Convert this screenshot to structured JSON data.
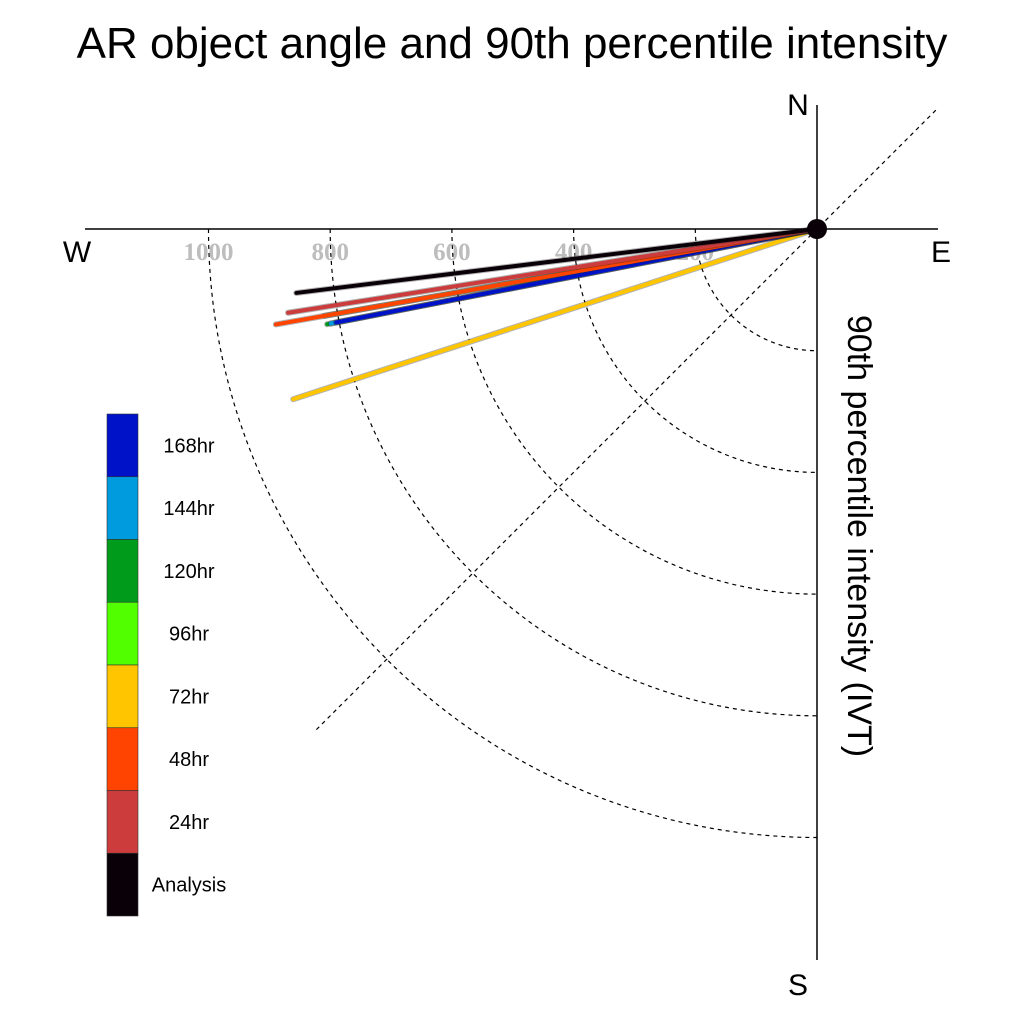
{
  "chart_data": {
    "type": "polar-vector",
    "title": "AR object angle and 90th percentile intensity",
    "ylabel": "90th percentile intensity (IVT)",
    "directions": {
      "north": "N",
      "south": "S",
      "east": "E",
      "west": "W"
    },
    "radial_ticks": [
      "1000",
      "800",
      "600",
      "400",
      "200"
    ],
    "radial_tick_values": [
      1000,
      800,
      600,
      400,
      200
    ],
    "radial_max": 1200,
    "series": [
      {
        "name": "72hr",
        "angle_deg": 198,
        "intensity": 905,
        "color": "#FFC600"
      },
      {
        "name": "96hr",
        "angle_deg": 190,
        "intensity": 822,
        "color": "#52FF00"
      },
      {
        "name": "120hr",
        "angle_deg": 191,
        "intensity": 820,
        "color": "#009B1A"
      },
      {
        "name": "144hr",
        "angle_deg": 191,
        "intensity": 814,
        "color": "#009ADE"
      },
      {
        "name": "168hr",
        "angle_deg": 191,
        "intensity": 805,
        "color": "#0012C8"
      },
      {
        "name": "48hr",
        "angle_deg": 190,
        "intensity": 903,
        "color": "#FF4300"
      },
      {
        "name": "24hr",
        "angle_deg": 189,
        "intensity": 880,
        "color": "#CC3C3C"
      },
      {
        "name": "Analysis",
        "angle_deg": 187,
        "intensity": 862,
        "color": "#0A0008"
      }
    ],
    "legend": {
      "position": "left",
      "entries": [
        {
          "label": "168hr",
          "color": "#0012C8"
        },
        {
          "label": "144hr",
          "color": "#009ADE"
        },
        {
          "label": "120hr",
          "color": "#009B1A"
        },
        {
          "label": "96hr",
          "color": "#52FF00"
        },
        {
          "label": "72hr",
          "color": "#FFC600"
        },
        {
          "label": "48hr",
          "color": "#FF4300"
        },
        {
          "label": "24hr",
          "color": "#CC3C3C"
        },
        {
          "label": "Analysis",
          "color": "#0A0008"
        }
      ]
    }
  }
}
